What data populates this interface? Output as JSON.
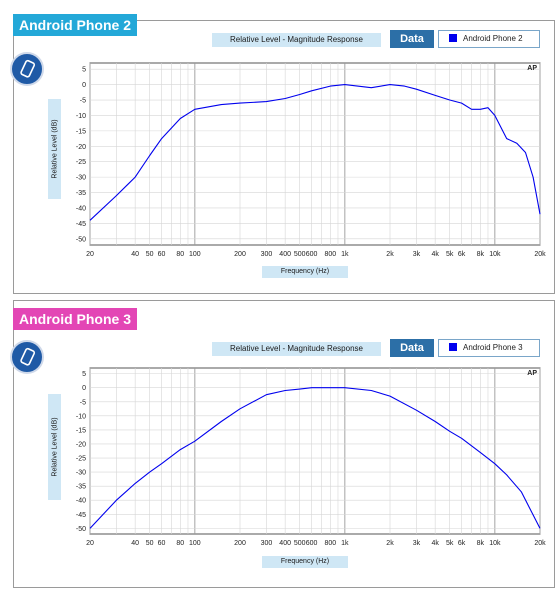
{
  "panels": [
    {
      "tag": "Android Phone 2",
      "tag_color": "#23a8d8",
      "chart_title": "Relative Level - Magnitude Response",
      "data_button": "Data",
      "legend_entry": "Android Phone 2",
      "y_axis_label": "Relative Level (dB)",
      "x_axis_label": "Frequency (Hz)",
      "watermark": "AP"
    },
    {
      "tag": "Android Phone 3",
      "tag_color": "#e346b5",
      "chart_title": "Relative Level - Magnitude Response",
      "data_button": "Data",
      "legend_entry": "Android Phone 3",
      "y_axis_label": "Relative Level (dB)",
      "x_axis_label": "Frequency (Hz)",
      "watermark": "AP"
    }
  ],
  "chart_data": [
    {
      "type": "line",
      "title": "Relative Level - Magnitude Response",
      "xlabel": "Frequency (Hz)",
      "ylabel": "Relative Level (dB)",
      "x_scale": "log",
      "xlim": [
        20,
        20000
      ],
      "ylim": [
        -52,
        7
      ],
      "x_ticks": [
        20,
        40,
        50,
        60,
        80,
        100,
        200,
        300,
        400,
        500,
        600,
        800,
        1000,
        2000,
        3000,
        4000,
        5000,
        6000,
        8000,
        10000,
        20000
      ],
      "x_tick_labels": [
        "20",
        "40",
        "50",
        "60",
        "80",
        "100",
        "200",
        "300",
        "400",
        "500",
        "600",
        "800",
        "1k",
        "2k",
        "3k",
        "4k",
        "5k",
        "6k",
        "8k",
        "10k",
        "20k"
      ],
      "y_ticks": [
        5,
        0,
        -5,
        -10,
        -15,
        -20,
        -25,
        -30,
        -35,
        -40,
        -45,
        -50
      ],
      "grid": true,
      "series": [
        {
          "name": "Android Phone 2",
          "color": "#0000ee",
          "x": [
            20,
            30,
            40,
            50,
            60,
            80,
            100,
            150,
            200,
            300,
            400,
            500,
            600,
            800,
            1000,
            1500,
            2000,
            2500,
            3000,
            4000,
            5000,
            6000,
            7000,
            8000,
            9000,
            10000,
            12000,
            14000,
            16000,
            18000,
            20000
          ],
          "y": [
            -44,
            -36,
            -30,
            -23,
            -17.5,
            -11,
            -8,
            -6.5,
            -6,
            -5.5,
            -4.5,
            -3.2,
            -2,
            -0.5,
            0,
            -1,
            0,
            -0.5,
            -1.5,
            -3.5,
            -5,
            -6,
            -8,
            -8,
            -7.5,
            -10,
            -17.5,
            -19,
            -22,
            -30,
            -42
          ]
        }
      ]
    },
    {
      "type": "line",
      "title": "Relative Level - Magnitude Response",
      "xlabel": "Frequency (Hz)",
      "ylabel": "Relative Level (dB)",
      "x_scale": "log",
      "xlim": [
        20,
        20000
      ],
      "ylim": [
        -52,
        7
      ],
      "x_ticks": [
        20,
        40,
        50,
        60,
        80,
        100,
        200,
        300,
        400,
        500,
        600,
        800,
        1000,
        2000,
        3000,
        4000,
        5000,
        6000,
        8000,
        10000,
        20000
      ],
      "x_tick_labels": [
        "20",
        "40",
        "50",
        "60",
        "80",
        "100",
        "200",
        "300",
        "400",
        "500",
        "600",
        "800",
        "1k",
        "2k",
        "3k",
        "4k",
        "5k",
        "6k",
        "8k",
        "10k",
        "20k"
      ],
      "y_ticks": [
        5,
        0,
        -5,
        -10,
        -15,
        -20,
        -25,
        -30,
        -35,
        -40,
        -45,
        -50
      ],
      "grid": true,
      "series": [
        {
          "name": "Android Phone 3",
          "color": "#0000ee",
          "x": [
            20,
            30,
            40,
            50,
            60,
            80,
            100,
            150,
            200,
            300,
            400,
            500,
            600,
            800,
            1000,
            1500,
            2000,
            3000,
            4000,
            5000,
            6000,
            8000,
            10000,
            12000,
            15000,
            20000
          ],
          "y": [
            -50,
            -40,
            -34,
            -30,
            -27,
            -22,
            -19,
            -12,
            -7.5,
            -2.5,
            -1,
            -0.5,
            0,
            0,
            0,
            -1,
            -3,
            -8,
            -12,
            -15.5,
            -18,
            -23,
            -27,
            -31,
            -37,
            -50
          ]
        }
      ]
    }
  ]
}
